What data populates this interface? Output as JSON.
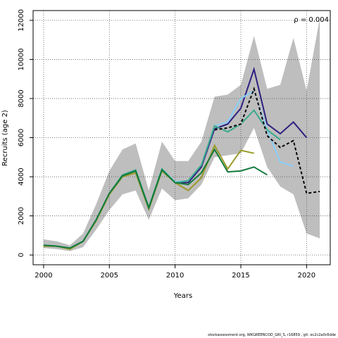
{
  "chart_data": {
    "type": "line",
    "xlabel": "Years",
    "ylabel": "Recruits (age 2)",
    "annotation": "ρ = 0.004",
    "xlim": [
      1999.2,
      2021.8
    ],
    "ylim": [
      -500,
      12500
    ],
    "xticks": [
      2000,
      2005,
      2010,
      2015,
      2020
    ],
    "yticks": [
      0,
      2000,
      4000,
      6000,
      8000,
      10000,
      12000
    ],
    "grid": true,
    "band": {
      "x": [
        2000,
        2001,
        2002,
        2003,
        2004,
        2005,
        2006,
        2007,
        2008,
        2009,
        2010,
        2011,
        2012,
        2013,
        2014,
        2015,
        2016,
        2017,
        2018,
        2019,
        2020,
        2021
      ],
      "upper": [
        800,
        700,
        500,
        1100,
        2600,
        4300,
        5400,
        5700,
        3300,
        5800,
        4800,
        4800,
        5800,
        8100,
        8200,
        8700,
        11200,
        8500,
        8700,
        11100,
        8400,
        12100
      ],
      "lower": [
        350,
        300,
        200,
        400,
        1300,
        2300,
        3100,
        3300,
        1800,
        3400,
        2800,
        2900,
        3600,
        5000,
        5100,
        5200,
        6500,
        4500,
        3500,
        3100,
        1100,
        850
      ]
    },
    "series": [
      {
        "color": "#2e1f80",
        "dashed": false,
        "x": [
          2000,
          2001,
          2002,
          2003,
          2004,
          2005,
          2006,
          2007,
          2008,
          2009,
          2010,
          2011,
          2012,
          2013,
          2014,
          2015,
          2016,
          2017,
          2018,
          2019,
          2020
        ],
        "values": [
          500,
          450,
          350,
          700,
          1800,
          3150,
          4050,
          4300,
          2400,
          4350,
          3700,
          3700,
          4500,
          6450,
          6700,
          7500,
          9500,
          6700,
          6200,
          6800,
          6000
        ]
      },
      {
        "color": "#87cefa",
        "dashed": false,
        "x": [
          2000,
          2001,
          2002,
          2003,
          2004,
          2005,
          2006,
          2007,
          2008,
          2009,
          2010,
          2011,
          2012,
          2013,
          2014,
          2015,
          2016,
          2017,
          2018,
          2019
        ],
        "values": [
          500,
          450,
          350,
          700,
          1800,
          3150,
          4050,
          4300,
          2400,
          4400,
          3750,
          3800,
          4600,
          6600,
          6800,
          8000,
          8400,
          6400,
          4750,
          4550
        ]
      },
      {
        "color": "#3aaa8c",
        "dashed": false,
        "x": [
          2000,
          2001,
          2002,
          2003,
          2004,
          2005,
          2006,
          2007,
          2008,
          2009,
          2010,
          2011,
          2012,
          2013,
          2014,
          2015,
          2016,
          2017,
          2018
        ],
        "values": [
          500,
          450,
          350,
          700,
          1800,
          3150,
          4100,
          4350,
          2450,
          4400,
          3700,
          3800,
          4600,
          6600,
          6300,
          6700,
          7400,
          6400,
          5900
        ]
      },
      {
        "color": "#9a9a2a",
        "dashed": false,
        "x": [
          2000,
          2001,
          2002,
          2003,
          2004,
          2005,
          2006,
          2007,
          2008,
          2009,
          2010,
          2011,
          2012,
          2013,
          2014,
          2015,
          2016
        ],
        "values": [
          450,
          450,
          300,
          700,
          1750,
          3100,
          4000,
          4200,
          2350,
          4300,
          3700,
          3300,
          3950,
          5600,
          4400,
          5350,
          5200
        ]
      },
      {
        "color": "#137a3c",
        "dashed": false,
        "x": [
          2000,
          2001,
          2002,
          2003,
          2004,
          2005,
          2006,
          2007,
          2008,
          2009,
          2010,
          2011,
          2012,
          2013,
          2014,
          2015,
          2016,
          2017
        ],
        "values": [
          500,
          450,
          350,
          700,
          1800,
          3150,
          4050,
          4300,
          2400,
          4350,
          3700,
          3600,
          4200,
          5400,
          4250,
          4300,
          4500,
          4100
        ]
      },
      {
        "color": "#000000",
        "dashed": true,
        "x": [
          2013,
          2014,
          2015,
          2016,
          2017,
          2018,
          2019,
          2020,
          2021
        ],
        "values": [
          6400,
          6500,
          6700,
          8500,
          6100,
          5500,
          5850,
          3150,
          3250
        ]
      }
    ]
  },
  "footer": "stockassessment.org,  WKGREENCOD_GRI_S,  r16859 ,  git: ec2c2a0c6dde"
}
